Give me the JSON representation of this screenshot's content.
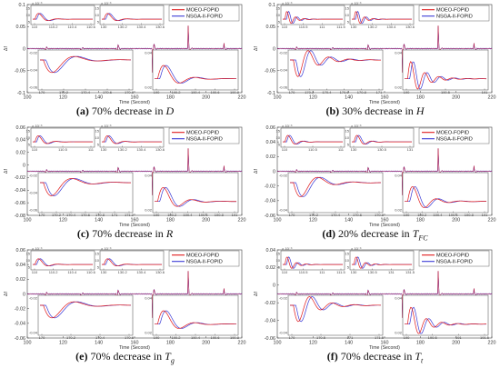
{
  "figure": {
    "legend_series": [
      "MOEO-FOPID",
      "NSGA-II-FOPID"
    ],
    "colors": {
      "moeo": "#e0191b",
      "nsga": "#3b3bd6",
      "main": "#1a1ad0"
    },
    "xlabel": "Time (Second)",
    "ylabel": "Δf",
    "inset_exponent": "× 10⁻³"
  },
  "panels": [
    {
      "caption_letter": "(a)",
      "caption_text": "70% decrease in",
      "caption_var": "D",
      "caption_sub": "",
      "legend_labels": [
        "MOEO-FOPID",
        "NSGA-II-FOPID"
      ],
      "y_ticks": [
        "0.1",
        "0.05",
        "0",
        "-0.05",
        "-0.1"
      ],
      "x_ticks": [
        "100",
        "120",
        "140",
        "160",
        "180",
        "200",
        "220"
      ],
      "inset_tl_ticks": [
        "110",
        "110.2",
        "110.4",
        "110.6"
      ],
      "inset_tr_ticks": [
        "130",
        "130.2",
        "130.4",
        "130.6"
      ],
      "inset_bl_ticks": [
        "170",
        "170.2",
        "170.4",
        "170.6",
        "170.8"
      ],
      "inset_br_ticks": [
        "190",
        "190.2",
        "190.4",
        "190.6",
        "190.8"
      ],
      "inset_bl_y": [
        "-0.02",
        "-0.04",
        "-0.06"
      ],
      "inset_br_y": [
        "0.04",
        "0.02"
      ]
    },
    {
      "caption_letter": "(b)",
      "caption_text": "30% decrease in",
      "caption_var": "H",
      "caption_sub": "",
      "legend_labels": [
        "MOEO-FOPID",
        "NSGA-II-FOPID"
      ],
      "y_ticks": [
        "0.1",
        "0.05",
        "0",
        "-0.05",
        "-0.1"
      ],
      "x_ticks": [
        "100",
        "120",
        "140",
        "160",
        "180",
        "200",
        "220"
      ],
      "inset_tl_ticks": [
        "110",
        "110.5",
        "111",
        "111.5"
      ],
      "inset_tr_ticks": [
        "130",
        "130.2",
        "130.4",
        "130.6"
      ],
      "inset_bl_ticks": [
        "170",
        "170.2",
        "170.4",
        "170.6",
        "170.8",
        "171"
      ],
      "inset_br_ticks": [
        "190",
        "190.5",
        "191"
      ],
      "inset_bl_y": [
        "-0.02",
        "-0.04",
        "-0.06"
      ],
      "inset_br_y": [
        "0.04",
        "0.02"
      ]
    },
    {
      "caption_letter": "(c)",
      "caption_text": "70% decrease in",
      "caption_var": "R",
      "caption_sub": "",
      "legend_labels": [
        "MOEO-FOPID",
        "NSGA-II-FOPID"
      ],
      "y_ticks": [
        "0.06",
        "0.04",
        "0.02",
        "0",
        "-0.02",
        "-0.04",
        "-0.06",
        "-0.08"
      ],
      "x_ticks": [
        "100",
        "120",
        "140",
        "160",
        "180",
        "200",
        "220"
      ],
      "inset_tl_ticks": [
        "110",
        "110.5",
        "111"
      ],
      "inset_tr_ticks": [
        "130",
        "130.2",
        "130.4",
        "130.6"
      ],
      "inset_bl_ticks": [
        "170",
        "170.2",
        "170.4",
        "170.6",
        "170.8",
        "171",
        "171.2"
      ],
      "inset_br_ticks": [
        "190",
        "190.2",
        "190.4",
        "190.6",
        "190.8",
        "191"
      ],
      "inset_bl_y": [
        "-0.02",
        "-0.04",
        "-0.06"
      ],
      "inset_br_y": [
        "0.04",
        "0.02"
      ]
    },
    {
      "caption_letter": "(d)",
      "caption_text": "20% decrease in",
      "caption_var": "T",
      "caption_sub": "FC",
      "legend_labels": [
        "MOEO-FOPID",
        "NSGA-II-FOPID"
      ],
      "y_ticks": [
        "0.06",
        "0.04",
        "0.02",
        "0",
        "-0.02",
        "-0.04",
        "-0.06"
      ],
      "x_ticks": [
        "100",
        "120",
        "140",
        "160",
        "180",
        "200",
        "220"
      ],
      "inset_tl_ticks": [
        "110",
        "110.5",
        "111"
      ],
      "inset_tr_ticks": [
        "130",
        "130.5",
        "131"
      ],
      "inset_bl_ticks": [
        "170",
        "170.2",
        "170.4",
        "170.6",
        "170.8"
      ],
      "inset_br_ticks": [
        "190",
        "190.2",
        "190.4",
        "190.6",
        "190.8",
        "191"
      ],
      "inset_bl_y": [
        "-0.02",
        "-0.04"
      ],
      "inset_br_y": [
        "0.04",
        "0.02"
      ]
    },
    {
      "caption_letter": "(e)",
      "caption_text": "70% decrease in",
      "caption_var": "T",
      "caption_sub": "g",
      "legend_labels": [
        "MOEO-FOPID",
        "NSGA-II-FOPID"
      ],
      "y_ticks": [
        "0.06",
        "0.04",
        "0.02",
        "0",
        "-0.02",
        "-0.04",
        "-0.06"
      ],
      "x_ticks": [
        "100",
        "120",
        "140",
        "160",
        "180",
        "200",
        "220"
      ],
      "inset_tl_ticks": [
        "110",
        "110.2",
        "110.4",
        "110.6"
      ],
      "inset_tr_ticks": [
        "130",
        "130.2",
        "130.4",
        "130.6"
      ],
      "inset_bl_ticks": [
        "170",
        "170.2",
        "170.4",
        "170.6"
      ],
      "inset_br_ticks": [
        "190",
        "190.2",
        "190.4",
        "190.6",
        "190.8"
      ],
      "inset_bl_y": [
        "-0.02",
        "-0.04"
      ],
      "inset_br_y": [
        "0.04",
        "0.02"
      ]
    },
    {
      "caption_letter": "(f)",
      "caption_text": "70% decrease in",
      "caption_var": "T",
      "caption_sub": "t",
      "legend_labels": [
        "MOEO-FOPID",
        "NSGA-II-FOPID"
      ],
      "y_ticks": [
        "0.04",
        "0.02",
        "0",
        "-0.02",
        "-0.04",
        "-0.06"
      ],
      "x_ticks": [
        "100",
        "120",
        "140",
        "160",
        "180",
        "200",
        "220"
      ],
      "inset_tl_ticks": [
        "110",
        "110.5",
        "111",
        "111.5"
      ],
      "inset_tr_ticks": [
        "130",
        "130.5",
        "131",
        "131.5"
      ],
      "inset_bl_ticks": [
        "170",
        "170.5",
        "171",
        "171.5"
      ],
      "inset_br_ticks": [
        "190",
        "190.5",
        "191",
        "191.5"
      ],
      "inset_bl_y": [
        "-0.02",
        "-0.04"
      ],
      "inset_br_y": [
        "0.04",
        "0.02"
      ]
    }
  ],
  "chart_data": [
    {
      "type": "line",
      "title": "(a) 70% decrease in D",
      "xlabel": "Time (Second)",
      "ylabel": "Δf",
      "xlim": [
        100,
        220
      ],
      "ylim": [
        -0.1,
        0.1
      ],
      "series": [
        {
          "name": "MOEO-FOPID"
        },
        {
          "name": "NSGA-II-FOPID"
        }
      ]
    },
    {
      "type": "line",
      "title": "(b) 30% decrease in H",
      "xlabel": "Time (Second)",
      "ylabel": "Δf",
      "xlim": [
        100,
        220
      ],
      "ylim": [
        -0.1,
        0.1
      ],
      "series": [
        {
          "name": "MOEO-FOPID"
        },
        {
          "name": "NSGA-II-FOPID"
        }
      ]
    },
    {
      "type": "line",
      "title": "(c) 70% decrease in R",
      "xlabel": "Time (Second)",
      "ylabel": "Δf",
      "xlim": [
        100,
        220
      ],
      "ylim": [
        -0.08,
        0.06
      ],
      "series": [
        {
          "name": "MOEO-FOPID"
        },
        {
          "name": "NSGA-II-FOPID"
        }
      ]
    },
    {
      "type": "line",
      "title": "(d) 20% decrease in TFC",
      "xlabel": "Time (Second)",
      "ylabel": "Δf",
      "xlim": [
        100,
        220
      ],
      "ylim": [
        -0.06,
        0.06
      ],
      "series": [
        {
          "name": "MOEO-FOPID"
        },
        {
          "name": "NSGA-II-FOPID"
        }
      ]
    },
    {
      "type": "line",
      "title": "(e) 70% decrease in Tg",
      "xlabel": "Time (Second)",
      "ylabel": "Δf",
      "xlim": [
        100,
        220
      ],
      "ylim": [
        -0.06,
        0.06
      ],
      "series": [
        {
          "name": "MOEO-FOPID"
        },
        {
          "name": "NSGA-II-FOPID"
        }
      ]
    },
    {
      "type": "line",
      "title": "(f) 70% decrease in Tt",
      "xlabel": "Time (Second)",
      "ylabel": "Δf",
      "xlim": [
        100,
        220
      ],
      "ylim": [
        -0.06,
        0.04
      ],
      "series": [
        {
          "name": "MOEO-FOPID"
        },
        {
          "name": "NSGA-II-FOPID"
        }
      ]
    }
  ]
}
